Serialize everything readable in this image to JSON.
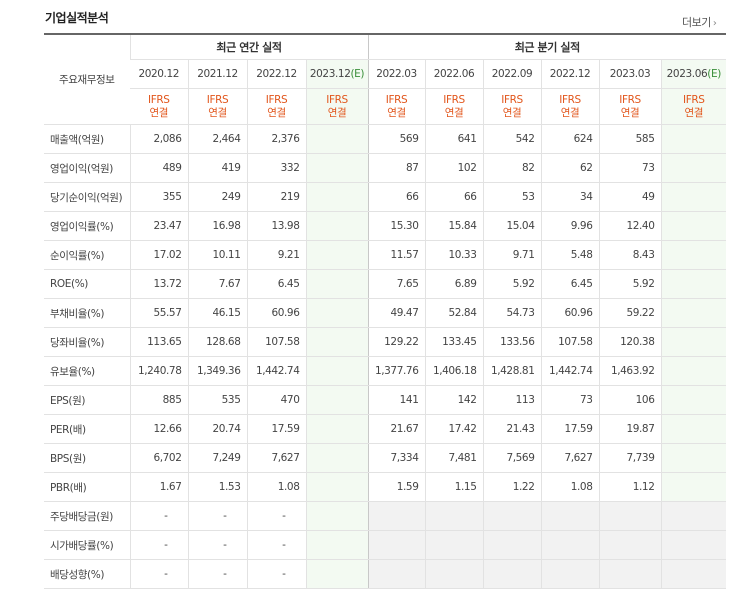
{
  "section": {
    "title": "기업실적분석",
    "more_label": "더보기"
  },
  "header": {
    "corner_label": "주요재무정보",
    "annual_group": "최근 연간 실적",
    "quarter_group": "최근 분기 실적",
    "annual_periods": [
      "2020.12",
      "2021.12",
      "2022.12",
      "2023.12"
    ],
    "quarter_periods": [
      "2022.03",
      "2022.06",
      "2022.09",
      "2022.12",
      "2023.03",
      "2023.06"
    ],
    "estimate_mark": "(E)",
    "ifrs_top": "IFRS",
    "ifrs_bottom": "연결"
  },
  "rows": [
    {
      "label": "매출액(억원)",
      "annual": [
        "2,086",
        "2,464",
        "2,376",
        ""
      ],
      "quarter": [
        "569",
        "641",
        "542",
        "624",
        "585",
        ""
      ]
    },
    {
      "label": "영업이익(억원)",
      "annual": [
        "489",
        "419",
        "332",
        ""
      ],
      "quarter": [
        "87",
        "102",
        "82",
        "62",
        "73",
        ""
      ]
    },
    {
      "label": "당기순이익(억원)",
      "annual": [
        "355",
        "249",
        "219",
        ""
      ],
      "quarter": [
        "66",
        "66",
        "53",
        "34",
        "49",
        ""
      ]
    },
    {
      "label": "영업이익률(%)",
      "annual": [
        "23.47",
        "16.98",
        "13.98",
        ""
      ],
      "quarter": [
        "15.30",
        "15.84",
        "15.04",
        "9.96",
        "12.40",
        ""
      ]
    },
    {
      "label": "순이익률(%)",
      "annual": [
        "17.02",
        "10.11",
        "9.21",
        ""
      ],
      "quarter": [
        "11.57",
        "10.33",
        "9.71",
        "5.48",
        "8.43",
        ""
      ]
    },
    {
      "label": "ROE(%)",
      "annual": [
        "13.72",
        "7.67",
        "6.45",
        ""
      ],
      "quarter": [
        "7.65",
        "6.89",
        "5.92",
        "6.45",
        "5.92",
        ""
      ]
    },
    {
      "label": "부채비율(%)",
      "annual": [
        "55.57",
        "46.15",
        "60.96",
        ""
      ],
      "quarter": [
        "49.47",
        "52.84",
        "54.73",
        "60.96",
        "59.22",
        ""
      ]
    },
    {
      "label": "당좌비율(%)",
      "annual": [
        "113.65",
        "128.68",
        "107.58",
        ""
      ],
      "quarter": [
        "129.22",
        "133.45",
        "133.56",
        "107.58",
        "120.38",
        ""
      ]
    },
    {
      "label": "유보율(%)",
      "annual": [
        "1,240.78",
        "1,349.36",
        "1,442.74",
        ""
      ],
      "quarter": [
        "1,377.76",
        "1,406.18",
        "1,428.81",
        "1,442.74",
        "1,463.92",
        ""
      ]
    },
    {
      "label": "EPS(원)",
      "annual": [
        "885",
        "535",
        "470",
        ""
      ],
      "quarter": [
        "141",
        "142",
        "113",
        "73",
        "106",
        ""
      ]
    },
    {
      "label": "PER(배)",
      "annual": [
        "12.66",
        "20.74",
        "17.59",
        ""
      ],
      "quarter": [
        "21.67",
        "17.42",
        "21.43",
        "17.59",
        "19.87",
        ""
      ]
    },
    {
      "label": "BPS(원)",
      "annual": [
        "6,702",
        "7,249",
        "7,627",
        ""
      ],
      "quarter": [
        "7,334",
        "7,481",
        "7,569",
        "7,627",
        "7,739",
        ""
      ]
    },
    {
      "label": "PBR(배)",
      "annual": [
        "1.67",
        "1.53",
        "1.08",
        ""
      ],
      "quarter": [
        "1.59",
        "1.15",
        "1.22",
        "1.08",
        "1.12",
        ""
      ]
    },
    {
      "label": "주당배당금(원)",
      "annual": [
        "-",
        "-",
        "-",
        ""
      ],
      "quarter": null
    },
    {
      "label": "시가배당률(%)",
      "annual": [
        "-",
        "-",
        "-",
        ""
      ],
      "quarter": null
    },
    {
      "label": "배당성향(%)",
      "annual": [
        "-",
        "-",
        "-",
        ""
      ],
      "quarter": null
    }
  ]
}
